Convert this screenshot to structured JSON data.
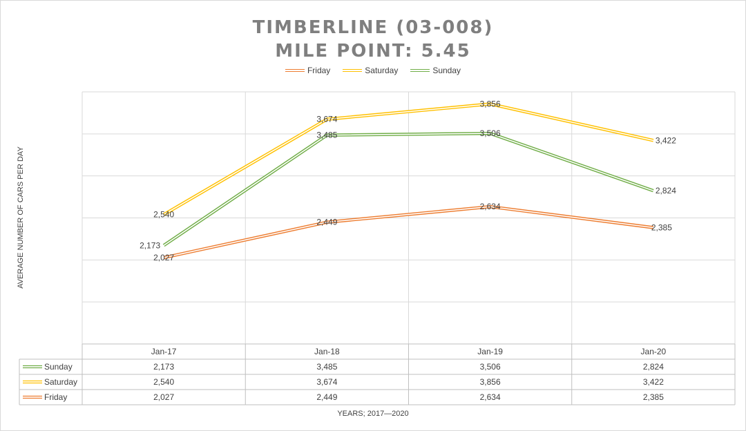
{
  "chart_data": {
    "type": "line",
    "title_lines": [
      "TIMBERLINE (03-008)",
      "MILE POINT: 5.45"
    ],
    "xlabel": "YEARS; 2017—2020",
    "ylabel": "AVERAGE NUMBER OF CARS PER DAY",
    "categories": [
      "Jan-17",
      "Jan-18",
      "Jan-19",
      "Jan-20"
    ],
    "legend": [
      "Friday",
      "Saturday",
      "Sunday"
    ],
    "table_order": [
      "Sunday",
      "Saturday",
      "Friday"
    ],
    "series": [
      {
        "name": "Friday",
        "color": "#ed7d31",
        "values": [
          2027,
          2449,
          2634,
          2385
        ],
        "labels": [
          "2,027",
          "2,449",
          "2,634",
          "2,385"
        ]
      },
      {
        "name": "Saturday",
        "color": "#ffc000",
        "values": [
          2540,
          3674,
          3856,
          3422
        ],
        "labels": [
          "2,540",
          "3,674",
          "3,856",
          "3,422"
        ]
      },
      {
        "name": "Sunday",
        "color": "#70ad47",
        "values": [
          2173,
          3485,
          3506,
          2824
        ],
        "labels": [
          "2,173",
          "3,485",
          "3,506",
          "2,824"
        ]
      }
    ],
    "grid": true,
    "legend_position": "top",
    "data_table": true
  }
}
